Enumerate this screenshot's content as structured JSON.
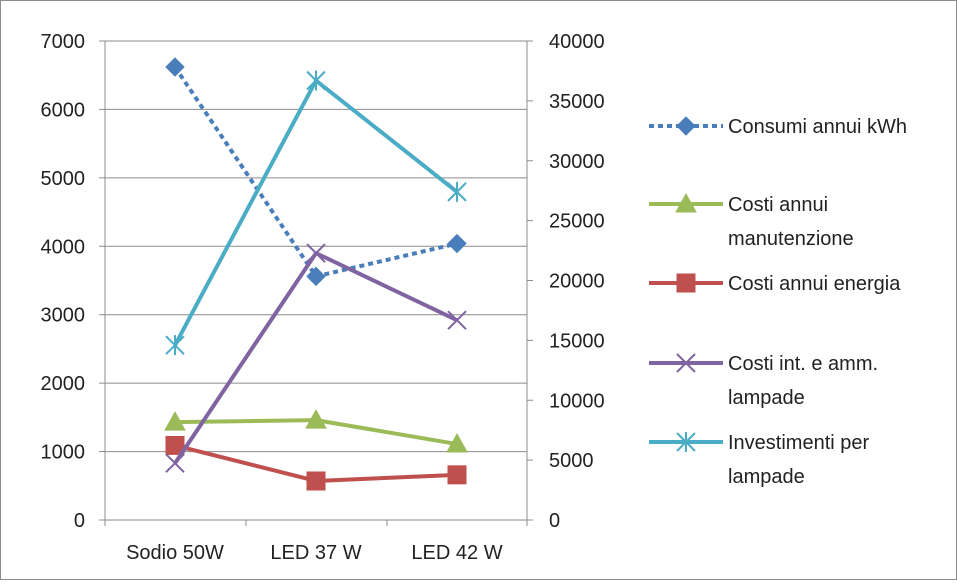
{
  "chart_data": {
    "type": "line",
    "title": "",
    "categories": [
      "Sodio 50W",
      "LED 37 W",
      "LED 42 W"
    ],
    "y_left": {
      "min": 0,
      "max": 7000,
      "ticks": [
        "0",
        "1000",
        "2000",
        "3000",
        "4000",
        "5000",
        "6000",
        "7000"
      ]
    },
    "y_right": {
      "min": 0,
      "max": 40000,
      "ticks": [
        "0",
        "5000",
        "10000",
        "15000",
        "20000",
        "25000",
        "30000",
        "35000",
        "40000"
      ]
    },
    "grid": true,
    "legend_position": "right",
    "series": [
      {
        "name": "Consumi annui kWh",
        "values": [
          6620,
          3560,
          4040
        ],
        "axis": "left",
        "color": "#4a7ebb",
        "marker": "diamond",
        "dash": "dotted"
      },
      {
        "name": "Costi annui manutenzione",
        "values": [
          1430,
          1460,
          1110
        ],
        "axis": "left",
        "color": "#9bbb59",
        "marker": "triangle",
        "dash": "solid"
      },
      {
        "name": "Costi annui energia",
        "values": [
          1090,
          570,
          660
        ],
        "axis": "left",
        "color": "#c0504d",
        "marker": "square",
        "dash": "solid"
      },
      {
        "name": "Costi int. e amm. lampade",
        "values": [
          830,
          3900,
          2920
        ],
        "axis": "left",
        "color": "#8064a2",
        "marker": "x",
        "dash": "solid"
      },
      {
        "name": "Investimenti per lampade",
        "values": [
          14600,
          36700,
          27400
        ],
        "axis": "right",
        "color": "#4bacc6",
        "marker": "star",
        "dash": "solid"
      }
    ],
    "legend_lines": [
      [
        "Consumi annui kWh"
      ],
      [
        "Costi annui",
        "manutenzione"
      ],
      [
        "Costi annui energia"
      ],
      [
        "Costi int. e amm.",
        "lampade"
      ],
      [
        "Investimenti per",
        "lampade"
      ]
    ]
  }
}
